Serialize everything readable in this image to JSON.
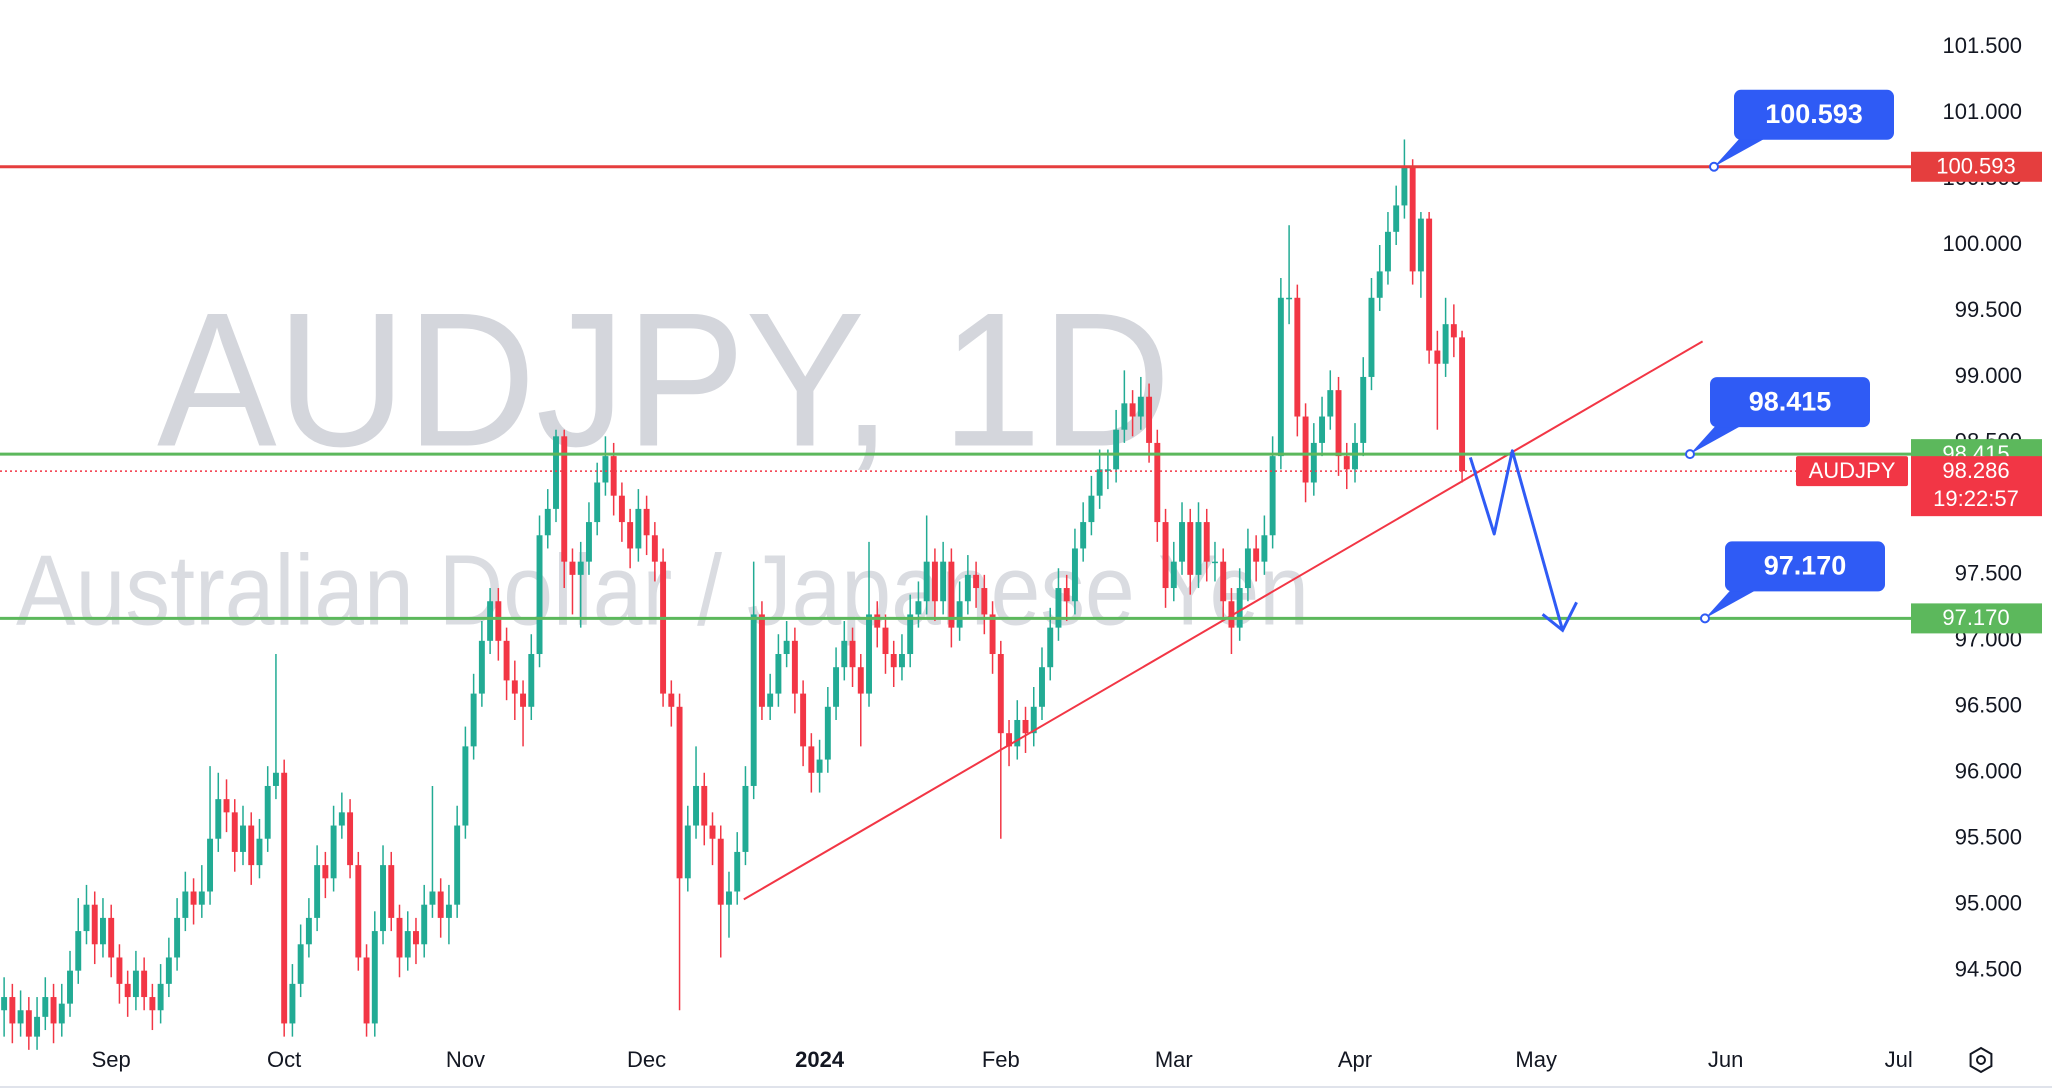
{
  "chart_data": {
    "type": "candlestick",
    "watermark": {
      "symbol": "AUDJPY, 1D",
      "description": "Australian Dollar / Japanese Yen"
    },
    "up_color": "#22ab94",
    "down_color": "#f23645",
    "ylim": [
      94.02,
      101.857
    ],
    "yticks": [
      {
        "value": 94.5,
        "label": "94.500"
      },
      {
        "value": 95,
        "label": "95.000"
      },
      {
        "value": 95.5,
        "label": "95.500"
      },
      {
        "value": 96,
        "label": "96.000"
      },
      {
        "value": 96.5,
        "label": "96.500"
      },
      {
        "value": 97,
        "label": "97.000"
      },
      {
        "value": 97.5,
        "label": "97.500"
      },
      {
        "value": 98,
        "label": "98.000"
      },
      {
        "value": 98.5,
        "label": "98.500"
      },
      {
        "value": 99,
        "label": "99.000"
      },
      {
        "value": 99.5,
        "label": "99.500"
      },
      {
        "value": 100,
        "label": "100.000"
      },
      {
        "value": 100.5,
        "label": "100.500"
      },
      {
        "value": 101,
        "label": "101.000"
      },
      {
        "value": 101.5,
        "label": "101.500"
      }
    ],
    "categories": [
      null,
      null,
      null,
      null,
      null,
      null,
      null,
      null,
      null,
      null,
      null,
      null,
      null,
      "Sep",
      null,
      null,
      null,
      null,
      null,
      null,
      null,
      null,
      null,
      null,
      null,
      null,
      null,
      null,
      null,
      null,
      null,
      null,
      null,
      null,
      "Oct",
      null,
      null,
      null,
      null,
      null,
      null,
      null,
      null,
      null,
      null,
      null,
      null,
      null,
      null,
      null,
      null,
      null,
      null,
      null,
      null,
      null,
      "Nov",
      null,
      null,
      null,
      null,
      null,
      null,
      null,
      null,
      null,
      null,
      null,
      null,
      null,
      null,
      null,
      null,
      null,
      null,
      null,
      null,
      null,
      "Dec",
      null,
      null,
      null,
      null,
      null,
      null,
      null,
      null,
      null,
      null,
      null,
      null,
      null,
      null,
      null,
      null,
      null,
      null,
      null,
      null,
      "2024",
      null,
      null,
      null,
      null,
      null,
      null,
      null,
      null,
      null,
      null,
      null,
      null,
      null,
      null,
      null,
      null,
      null,
      null,
      null,
      null,
      null,
      "Feb",
      null,
      null,
      null,
      null,
      null,
      null,
      null,
      null,
      null,
      null,
      null,
      null,
      null,
      null,
      null,
      null,
      null,
      null,
      null,
      null,
      "Mar",
      null,
      null,
      null,
      null,
      null,
      null,
      null,
      null,
      null,
      null,
      null,
      null,
      null,
      null,
      null,
      null,
      null,
      null,
      null,
      null,
      null,
      "Apr",
      null,
      null,
      null,
      null,
      null,
      null,
      null,
      null,
      null,
      null,
      null,
      null,
      null,
      null,
      null,
      null,
      null,
      null,
      null,
      null,
      null,
      "May",
      null,
      null,
      null,
      null,
      null,
      null,
      null,
      null,
      null,
      null,
      null,
      null,
      null,
      null,
      null,
      null,
      null,
      null,
      null,
      null,
      null,
      null,
      "Jun",
      null,
      null,
      null,
      null,
      null,
      null,
      null,
      null,
      null,
      null,
      null,
      null,
      null,
      null,
      null,
      null,
      null,
      null,
      null,
      null,
      "Jul",
      null
    ],
    "ohlc": [
      [
        94.2,
        94.45,
        94.0,
        94.3
      ],
      [
        94.3,
        94.4,
        93.95,
        94.1
      ],
      [
        94.1,
        94.35,
        94.0,
        94.2
      ],
      [
        94.2,
        94.3,
        93.9,
        94.0
      ],
      [
        94.0,
        94.3,
        93.9,
        94.15
      ],
      [
        94.15,
        94.45,
        94.05,
        94.3
      ],
      [
        94.3,
        94.4,
        93.95,
        94.1
      ],
      [
        94.1,
        94.4,
        94.0,
        94.25
      ],
      [
        94.25,
        94.65,
        94.15,
        94.5
      ],
      [
        94.5,
        95.05,
        94.4,
        94.8
      ],
      [
        94.8,
        95.15,
        94.7,
        95.0
      ],
      [
        95.0,
        95.1,
        94.55,
        94.7
      ],
      [
        94.7,
        95.05,
        94.6,
        94.9
      ],
      [
        94.9,
        95.0,
        94.45,
        94.6
      ],
      [
        94.6,
        94.7,
        94.25,
        94.4
      ],
      [
        94.4,
        94.5,
        94.15,
        94.3
      ],
      [
        94.3,
        94.65,
        94.2,
        94.5
      ],
      [
        94.5,
        94.6,
        94.2,
        94.3
      ],
      [
        94.3,
        94.4,
        94.05,
        94.2
      ],
      [
        94.2,
        94.55,
        94.1,
        94.4
      ],
      [
        94.4,
        94.75,
        94.3,
        94.6
      ],
      [
        94.6,
        95.05,
        94.5,
        94.9
      ],
      [
        94.9,
        95.25,
        94.8,
        95.1
      ],
      [
        95.1,
        95.2,
        94.85,
        95.0
      ],
      [
        95.0,
        95.3,
        94.9,
        95.1
      ],
      [
        95.1,
        96.05,
        95.0,
        95.5
      ],
      [
        95.5,
        96.0,
        95.4,
        95.8
      ],
      [
        95.8,
        95.95,
        95.55,
        95.7
      ],
      [
        95.7,
        95.8,
        95.25,
        95.4
      ],
      [
        95.4,
        95.75,
        95.3,
        95.6
      ],
      [
        95.6,
        95.7,
        95.15,
        95.3
      ],
      [
        95.3,
        95.65,
        95.2,
        95.5
      ],
      [
        95.5,
        96.05,
        95.4,
        95.9
      ],
      [
        95.9,
        96.9,
        95.8,
        96.0
      ],
      [
        96.0,
        96.1,
        94.0,
        94.1
      ],
      [
        94.1,
        94.55,
        94.0,
        94.4
      ],
      [
        94.4,
        94.85,
        94.3,
        94.7
      ],
      [
        94.7,
        95.05,
        94.6,
        94.9
      ],
      [
        94.9,
        95.45,
        94.8,
        95.3
      ],
      [
        95.3,
        95.4,
        95.05,
        95.2
      ],
      [
        95.2,
        95.75,
        95.1,
        95.6
      ],
      [
        95.6,
        95.85,
        95.5,
        95.7
      ],
      [
        95.7,
        95.8,
        95.2,
        95.3
      ],
      [
        95.3,
        95.4,
        94.5,
        94.6
      ],
      [
        94.6,
        94.7,
        94.0,
        94.1
      ],
      [
        94.1,
        94.95,
        94.0,
        94.8
      ],
      [
        94.8,
        95.45,
        94.7,
        95.3
      ],
      [
        95.3,
        95.4,
        94.8,
        94.9
      ],
      [
        94.9,
        95.0,
        94.45,
        94.6
      ],
      [
        94.6,
        94.95,
        94.5,
        94.8
      ],
      [
        94.8,
        94.9,
        94.55,
        94.7
      ],
      [
        94.7,
        95.15,
        94.6,
        95.0
      ],
      [
        95.0,
        95.9,
        94.9,
        95.1
      ],
      [
        95.1,
        95.2,
        94.75,
        94.9
      ],
      [
        94.9,
        95.15,
        94.7,
        95.0
      ],
      [
        95.0,
        95.75,
        94.9,
        95.6
      ],
      [
        95.6,
        96.35,
        95.5,
        96.2
      ],
      [
        96.2,
        96.75,
        96.1,
        96.6
      ],
      [
        96.6,
        97.15,
        96.5,
        97.0
      ],
      [
        97.0,
        97.4,
        96.9,
        97.3
      ],
      [
        97.3,
        97.4,
        96.85,
        97.0
      ],
      [
        97.0,
        97.1,
        96.55,
        96.7
      ],
      [
        96.7,
        96.85,
        96.4,
        96.6
      ],
      [
        96.6,
        96.7,
        96.2,
        96.5
      ],
      [
        96.5,
        97.05,
        96.4,
        96.9
      ],
      [
        96.9,
        97.95,
        96.8,
        97.8
      ],
      [
        97.8,
        98.15,
        97.7,
        98.0
      ],
      [
        98.0,
        98.6,
        97.9,
        98.55
      ],
      [
        98.55,
        98.6,
        97.4,
        97.6
      ],
      [
        97.6,
        97.7,
        97.2,
        97.5
      ],
      [
        97.5,
        97.75,
        97.1,
        97.6
      ],
      [
        97.6,
        98.05,
        97.5,
        97.9
      ],
      [
        97.9,
        98.35,
        97.8,
        98.2
      ],
      [
        98.2,
        98.55,
        98.1,
        98.4
      ],
      [
        98.4,
        98.5,
        97.95,
        98.1
      ],
      [
        98.1,
        98.2,
        97.75,
        97.9
      ],
      [
        97.9,
        98.0,
        97.55,
        97.7
      ],
      [
        97.7,
        98.15,
        97.6,
        98.0
      ],
      [
        98.0,
        98.1,
        97.65,
        97.8
      ],
      [
        97.8,
        97.9,
        97.45,
        97.6
      ],
      [
        97.6,
        97.7,
        96.5,
        96.6
      ],
      [
        96.6,
        96.7,
        96.35,
        96.5
      ],
      [
        96.5,
        96.6,
        94.2,
        95.2
      ],
      [
        95.2,
        95.75,
        95.1,
        95.6
      ],
      [
        95.6,
        96.2,
        95.5,
        95.9
      ],
      [
        95.9,
        96.0,
        95.45,
        95.6
      ],
      [
        95.6,
        95.7,
        95.3,
        95.5
      ],
      [
        95.5,
        95.6,
        94.6,
        95.0
      ],
      [
        95.0,
        95.25,
        94.75,
        95.1
      ],
      [
        95.1,
        95.55,
        95.0,
        95.4
      ],
      [
        95.4,
        96.05,
        95.3,
        95.9
      ],
      [
        95.9,
        97.6,
        95.8,
        97.2
      ],
      [
        97.2,
        97.3,
        96.4,
        96.5
      ],
      [
        96.5,
        96.75,
        96.4,
        96.6
      ],
      [
        96.6,
        97.05,
        96.5,
        96.9
      ],
      [
        96.9,
        97.15,
        96.8,
        97.0
      ],
      [
        97.0,
        97.1,
        96.45,
        96.6
      ],
      [
        96.6,
        96.7,
        96.05,
        96.2
      ],
      [
        96.2,
        96.3,
        95.85,
        96.0
      ],
      [
        96.0,
        96.25,
        95.85,
        96.1
      ],
      [
        96.1,
        96.65,
        96.0,
        96.5
      ],
      [
        96.5,
        96.95,
        96.4,
        96.8
      ],
      [
        96.8,
        97.15,
        96.7,
        97.0
      ],
      [
        97.0,
        97.1,
        96.65,
        96.8
      ],
      [
        96.8,
        96.9,
        96.2,
        96.6
      ],
      [
        96.6,
        97.75,
        96.5,
        97.2
      ],
      [
        97.2,
        97.3,
        96.95,
        97.1
      ],
      [
        97.1,
        97.2,
        96.75,
        96.9
      ],
      [
        96.9,
        97.0,
        96.65,
        96.8
      ],
      [
        96.8,
        97.05,
        96.7,
        96.9
      ],
      [
        96.9,
        97.35,
        96.8,
        97.2
      ],
      [
        97.2,
        97.45,
        97.1,
        97.3
      ],
      [
        97.3,
        97.95,
        97.2,
        97.6
      ],
      [
        97.6,
        97.7,
        97.15,
        97.3
      ],
      [
        97.3,
        97.75,
        97.2,
        97.6
      ],
      [
        97.6,
        97.7,
        96.95,
        97.1
      ],
      [
        97.1,
        97.45,
        97.0,
        97.3
      ],
      [
        97.3,
        97.65,
        97.2,
        97.5
      ],
      [
        97.5,
        97.6,
        97.25,
        97.4
      ],
      [
        97.4,
        97.5,
        97.05,
        97.2
      ],
      [
        97.2,
        97.3,
        96.75,
        96.9
      ],
      [
        96.9,
        97.0,
        95.5,
        96.3
      ],
      [
        96.3,
        96.4,
        96.05,
        96.2
      ],
      [
        96.2,
        96.55,
        96.1,
        96.4
      ],
      [
        96.4,
        96.5,
        96.15,
        96.3
      ],
      [
        96.3,
        96.65,
        96.2,
        96.5
      ],
      [
        96.5,
        96.95,
        96.4,
        96.8
      ],
      [
        96.8,
        97.25,
        96.7,
        97.1
      ],
      [
        97.1,
        97.55,
        97.0,
        97.4
      ],
      [
        97.4,
        97.5,
        97.15,
        97.3
      ],
      [
        97.3,
        97.85,
        97.2,
        97.7
      ],
      [
        97.7,
        98.05,
        97.6,
        97.9
      ],
      [
        97.9,
        98.25,
        97.8,
        98.1
      ],
      [
        98.1,
        98.45,
        98.0,
        98.3
      ],
      [
        98.3,
        98.45,
        98.15,
        98.3
      ],
      [
        98.3,
        98.75,
        98.2,
        98.6
      ],
      [
        98.6,
        99.05,
        98.5,
        98.8
      ],
      [
        98.8,
        98.9,
        98.55,
        98.7
      ],
      [
        98.7,
        99.0,
        98.6,
        98.85
      ],
      [
        98.85,
        98.95,
        98.35,
        98.5
      ],
      [
        98.5,
        98.6,
        97.75,
        97.9
      ],
      [
        97.9,
        98.0,
        97.25,
        97.4
      ],
      [
        97.4,
        97.75,
        97.3,
        97.6
      ],
      [
        97.6,
        98.05,
        97.5,
        97.9
      ],
      [
        97.9,
        98.0,
        97.35,
        97.5
      ],
      [
        97.5,
        98.05,
        97.4,
        97.9
      ],
      [
        97.9,
        98.0,
        97.45,
        97.6
      ],
      [
        97.6,
        97.75,
        97.45,
        97.6
      ],
      [
        97.6,
        97.7,
        97.15,
        97.3
      ],
      [
        97.3,
        97.4,
        96.9,
        97.1
      ],
      [
        97.1,
        97.55,
        97.0,
        97.4
      ],
      [
        97.4,
        97.85,
        97.3,
        97.7
      ],
      [
        97.7,
        97.8,
        97.45,
        97.6
      ],
      [
        97.6,
        97.95,
        97.5,
        97.8
      ],
      [
        97.8,
        98.55,
        97.7,
        98.4
      ],
      [
        98.4,
        99.75,
        98.3,
        99.6
      ],
      [
        99.6,
        100.15,
        99.4,
        99.6
      ],
      [
        99.6,
        99.7,
        98.55,
        98.7
      ],
      [
        98.7,
        98.8,
        98.05,
        98.2
      ],
      [
        98.2,
        98.65,
        98.1,
        98.5
      ],
      [
        98.5,
        98.85,
        98.4,
        98.7
      ],
      [
        98.7,
        99.05,
        98.6,
        98.9
      ],
      [
        98.9,
        99.0,
        98.25,
        98.4
      ],
      [
        98.4,
        98.5,
        98.15,
        98.3
      ],
      [
        98.3,
        98.65,
        98.2,
        98.5
      ],
      [
        98.5,
        99.15,
        98.4,
        99.0
      ],
      [
        99.0,
        99.75,
        98.9,
        99.6
      ],
      [
        99.6,
        100.0,
        99.5,
        99.8
      ],
      [
        99.8,
        100.25,
        99.7,
        100.1
      ],
      [
        100.1,
        100.45,
        100.0,
        100.3
      ],
      [
        100.3,
        100.8,
        100.2,
        100.6
      ],
      [
        100.6,
        100.65,
        99.7,
        99.8
      ],
      [
        99.8,
        100.25,
        99.6,
        100.2
      ],
      [
        100.2,
        100.25,
        99.1,
        99.2
      ],
      [
        99.2,
        99.35,
        98.6,
        99.1
      ],
      [
        99.1,
        99.6,
        99.0,
        99.4
      ],
      [
        99.4,
        99.55,
        99.15,
        99.3
      ],
      [
        99.3,
        99.35,
        98.2,
        98.286
      ],
      null,
      null,
      null,
      null,
      null,
      null,
      null,
      null,
      null,
      null,
      null,
      null,
      null,
      null,
      null,
      null,
      null,
      null,
      null,
      null,
      null,
      null,
      null,
      null,
      null,
      null,
      null,
      null,
      null,
      null,
      null,
      null,
      null,
      null,
      null,
      null,
      null,
      null,
      null,
      null,
      null,
      null,
      null,
      null,
      null,
      null,
      null,
      null,
      null,
      null,
      null,
      null,
      null,
      null
    ],
    "levels": [
      {
        "value": 100.593,
        "color": "#e53e3e"
      },
      {
        "value": 98.415,
        "color": "#5cb85c"
      },
      {
        "value": 97.17,
        "label": "97.170",
        "color": "#5cb85c"
      }
    ],
    "last": {
      "symbol": "AUDJPY",
      "value": 98.286,
      "countdown": "19:22:57",
      "color": "#f23645"
    },
    "trendline": {
      "x": [
        89.8,
        206.2
      ],
      "y": [
        95.04,
        99.27
      ],
      "color": "#f23645"
    },
    "projection": {
      "x": [
        178.0,
        180.9,
        183.1,
        189.2
      ],
      "y": [
        98.39,
        97.81,
        98.44,
        97.08
      ],
      "color": "#2f5bf5"
    }
  }
}
